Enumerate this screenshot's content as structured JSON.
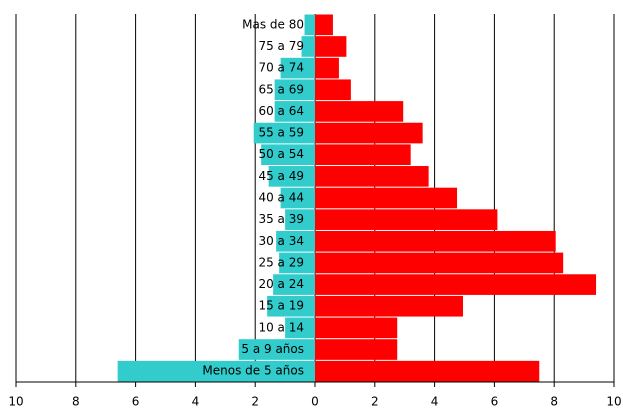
{
  "chart_data": {
    "type": "bar",
    "orientation": "horizontal",
    "stacked": true,
    "categories": [
      "Menos de 5 años",
      "5 a 9 años",
      "10 a 14",
      "15 a 19",
      "20 a 24",
      "25 a 29",
      "30 a 34",
      "35 a 39",
      "40 a 44",
      "45 a 49",
      "50 a 54",
      "55 a 59",
      "60 a 64",
      "65 a 69",
      "70 a 74",
      "75 a 79",
      "Mas de 80"
    ],
    "series": [
      {
        "color": "#33cccc",
        "values": [
          -6.6,
          -2.55,
          -1.0,
          -1.6,
          -1.4,
          -1.2,
          -1.3,
          -1.0,
          -1.15,
          -1.55,
          -1.8,
          -2.05,
          -1.35,
          -1.35,
          -1.15,
          -0.45,
          -0.35
        ]
      },
      {
        "color": "#ff0000",
        "values": [
          7.5,
          2.75,
          2.75,
          4.95,
          9.4,
          8.3,
          8.05,
          6.1,
          4.75,
          3.8,
          3.2,
          3.6,
          2.95,
          1.2,
          0.8,
          1.05,
          0.6
        ]
      }
    ],
    "xlim": [
      -10,
      10
    ],
    "xticks": [
      {
        "value": -10,
        "label": "10"
      },
      {
        "value": -8,
        "label": "8"
      },
      {
        "value": -6,
        "label": "6"
      },
      {
        "value": -4,
        "label": "4"
      },
      {
        "value": -2,
        "label": "2"
      },
      0,
      2,
      4,
      6,
      8,
      10
    ],
    "grid": true
  }
}
